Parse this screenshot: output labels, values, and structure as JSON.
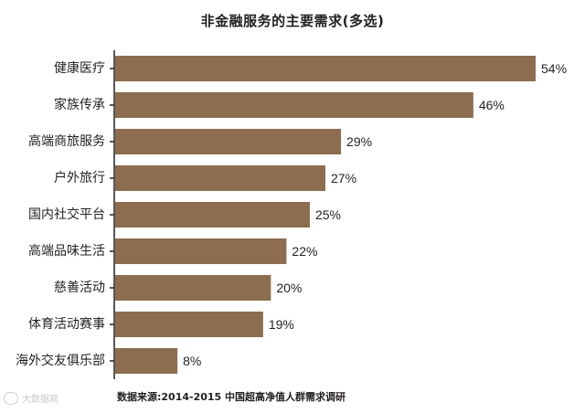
{
  "chart_data": {
    "type": "bar",
    "orientation": "horizontal",
    "title": "非金融服务的主要需求(多选)",
    "categories": [
      "健康医疗",
      "家族传承",
      "高端商旅服务",
      "户外旅行",
      "国内社交平台",
      "高端品味生活",
      "慈善活动",
      "体育活动赛事",
      "海外交友俱乐部"
    ],
    "values": [
      54,
      46,
      29,
      27,
      25,
      22,
      20,
      19,
      8
    ],
    "value_labels": [
      "54%",
      "46%",
      "29%",
      "27%",
      "25%",
      "22%",
      "20%",
      "19%",
      "8%"
    ],
    "xlim": [
      0,
      54
    ],
    "bar_color": "#8c6d4f",
    "axis_color": "#231f20",
    "grid": false
  },
  "source": "数据来源:2014-2015 中国超高净值人群需求调研",
  "watermark": "大数据观"
}
